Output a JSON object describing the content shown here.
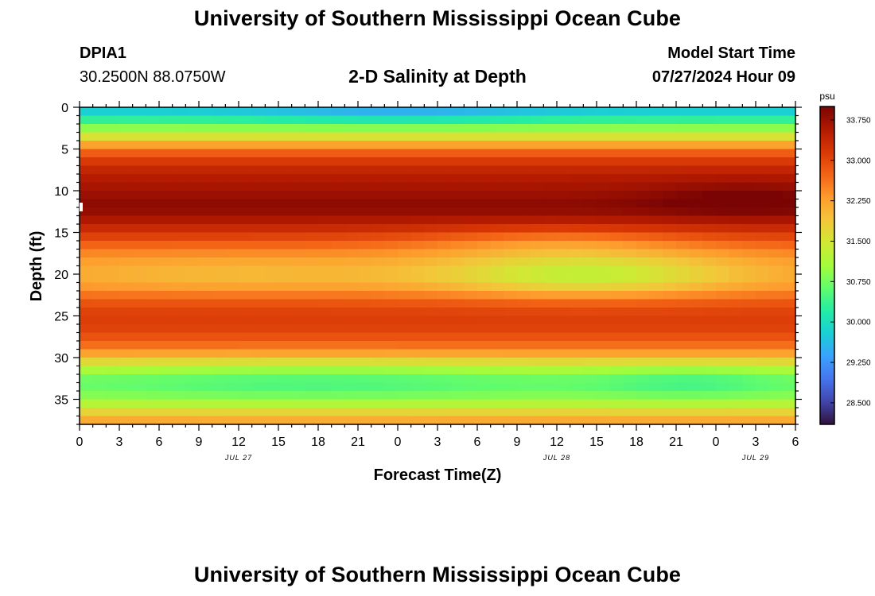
{
  "header": {
    "title": "University of Southern Mississippi Ocean Cube",
    "station": "DPIA1",
    "coordinates": "30.2500N  88.0750W",
    "subtitle": "2-D Salinity at Depth",
    "start_label": "Model Start Time",
    "start_value": "07/27/2024 Hour 09"
  },
  "footer": {
    "title": "University of Southern Mississippi Ocean Cube"
  },
  "colors": {
    "colormap": [
      "#30123b",
      "#4145ab",
      "#4675ed",
      "#39a2fc",
      "#1bcfd4",
      "#24eca6",
      "#61fc6c",
      "#a4fc3b",
      "#d1e834",
      "#f3c63a",
      "#fe9b2d",
      "#f36315",
      "#d93806",
      "#b11901",
      "#7a0403"
    ]
  },
  "chart_data": {
    "type": "heatmap",
    "title": "2-D Salinity at Depth",
    "xlabel": "Forecast Time(Z)",
    "ylabel": "Depth (ft)",
    "xlim": [
      0,
      54
    ],
    "ylim": [
      38,
      0
    ],
    "x_ticks": [
      0,
      3,
      6,
      9,
      12,
      15,
      18,
      21,
      24,
      27,
      30,
      33,
      36,
      39,
      42,
      45,
      48,
      51,
      54
    ],
    "x_tick_labels": [
      "0",
      "3",
      "6",
      "9",
      "12",
      "15",
      "18",
      "21",
      "0",
      "3",
      "6",
      "9",
      "12",
      "15",
      "18",
      "21",
      "0",
      "3",
      "6"
    ],
    "date_labels": [
      {
        "x": 12,
        "label": "JUL 27"
      },
      {
        "x": 36,
        "label": "JUL 28"
      },
      {
        "x": 51,
        "label": "JUL 29"
      }
    ],
    "y_ticks": [
      0,
      5,
      10,
      15,
      20,
      25,
      30,
      35
    ],
    "y_tick_labels": [
      "0",
      "5",
      "10",
      "15",
      "20",
      "25",
      "30",
      "35"
    ],
    "colorbar": {
      "units": "psu",
      "range": [
        28.1,
        34.0
      ],
      "ticks": [
        28.5,
        29.25,
        30.0,
        30.75,
        31.5,
        32.25,
        33.0,
        33.75
      ],
      "tick_labels": [
        "28.500",
        "29.250",
        "30.000",
        "30.750",
        "31.500",
        "32.250",
        "33.000",
        "33.750"
      ]
    },
    "depth_profile": {
      "depth": [
        0,
        1,
        2,
        3,
        4,
        5,
        6,
        7,
        8,
        9,
        10,
        11,
        12,
        13,
        14,
        15,
        16,
        17,
        18,
        19,
        20,
        21,
        22,
        23,
        24,
        25,
        26,
        27,
        28,
        29,
        30,
        31,
        32,
        33,
        34,
        35,
        36,
        37,
        38
      ],
      "salinity_psu": [
        29.6,
        30.0,
        30.6,
        31.2,
        31.9,
        32.6,
        33.0,
        33.3,
        33.5,
        33.6,
        33.7,
        33.8,
        33.9,
        33.7,
        33.5,
        33.2,
        32.9,
        32.6,
        32.4,
        32.3,
        32.25,
        32.3,
        32.5,
        32.8,
        33.0,
        33.1,
        33.1,
        33.0,
        32.8,
        32.5,
        32.0,
        31.4,
        30.9,
        30.7,
        30.8,
        31.0,
        31.5,
        32.0,
        32.3
      ]
    },
    "anomalies": [
      {
        "time_center": 38,
        "depth_center": 20,
        "time_halfwidth": 11,
        "depth_halfwidth": 2.6,
        "delta_psu": -0.95
      },
      {
        "time_center": 12,
        "depth_center": 20,
        "time_halfwidth": 14,
        "depth_halfwidth": 2.2,
        "delta_psu": -0.25
      },
      {
        "time_center": 50,
        "depth_center": 11,
        "time_halfwidth": 7,
        "depth_halfwidth": 2.0,
        "delta_psu": 0.3
      },
      {
        "time_center": 46,
        "depth_center": 33,
        "time_halfwidth": 7,
        "depth_halfwidth": 2.0,
        "delta_psu": -0.3
      },
      {
        "time_center": 18,
        "depth_center": 33,
        "time_halfwidth": 16,
        "depth_halfwidth": 2.5,
        "delta_psu": -0.25
      },
      {
        "time_center": 24,
        "depth_center": 0.5,
        "time_halfwidth": 10,
        "depth_halfwidth": 1.5,
        "delta_psu": -0.3
      },
      {
        "time_center": 36,
        "depth_center": 16,
        "time_halfwidth": 10,
        "depth_halfwidth": 1.8,
        "delta_psu": -0.4
      }
    ],
    "grid": false
  }
}
